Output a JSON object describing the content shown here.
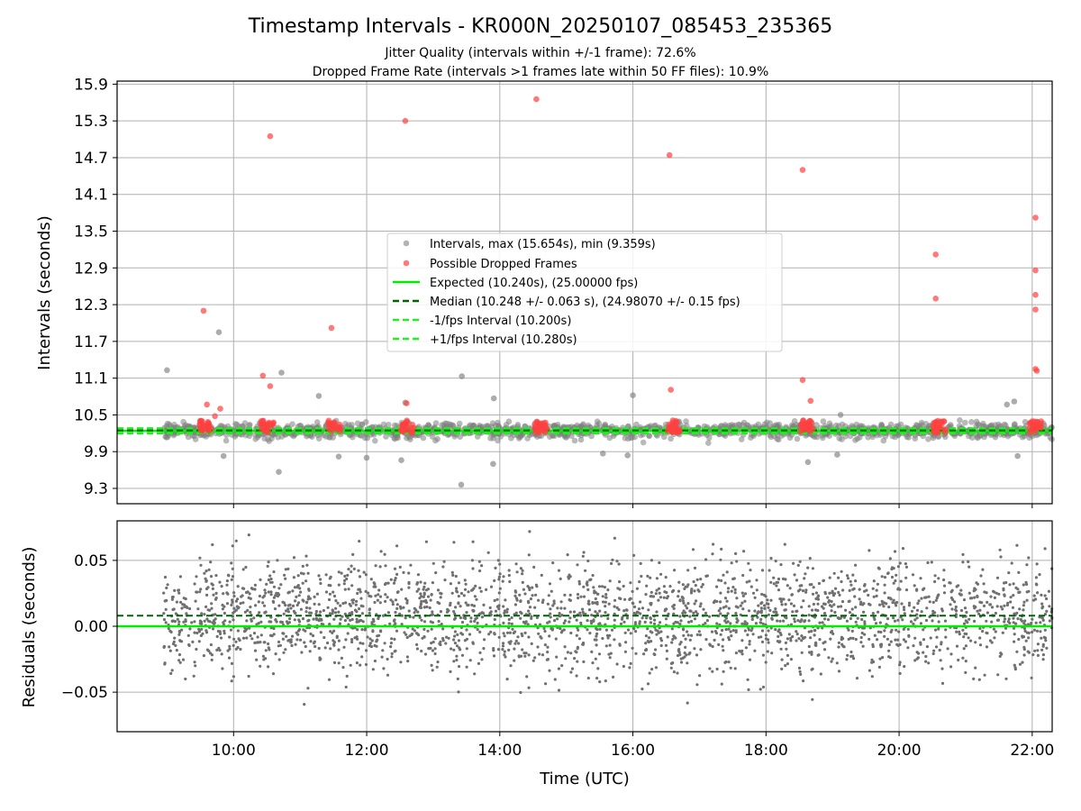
{
  "title": "Timestamp Intervals - KR000N_20250107_085453_235365",
  "subtitle_1": "Jitter Quality (intervals within +/-1 frame): 72.6%",
  "subtitle_2": "Dropped Frame Rate (intervals >1 frames late within 50 FF files): 10.9%",
  "chart_data": [
    {
      "type": "scatter",
      "panel": "top",
      "ylabel": "Intervals (seconds)",
      "x_unit": "hours UTC",
      "xlim": [
        8.25,
        22.3
      ],
      "ylim": [
        9.05,
        15.95
      ],
      "y_ticks": [
        "9.3",
        "9.9",
        "10.5",
        "11.1",
        "11.7",
        "12.3",
        "12.9",
        "13.5",
        "14.1",
        "14.7",
        "15.3",
        "15.9"
      ],
      "grid": true,
      "legend_position": "center",
      "legend": [
        "Intervals, max (15.654s), min (9.359s)",
        "Possible Dropped Frames",
        "Expected (10.240s), (25.00000 fps)",
        "Median (10.248 +/- 0.063 s), (24.98070 +/- 0.15 fps)",
        "-1/fps Interval (10.200s)",
        "+1/fps Interval (10.280s)"
      ],
      "reference_lines": {
        "expected": 10.24,
        "median": 10.248,
        "minus_one_frame": 10.2,
        "plus_one_frame": 10.28
      },
      "series": [
        {
          "name": "Intervals, max (15.654s), min (9.359s)",
          "color": "#808080",
          "points": [
            [
              9.0,
              11.23
            ],
            [
              9.78,
              11.85
            ],
            [
              10.72,
              11.19
            ],
            [
              13.43,
              11.13
            ],
            [
              13.91,
              10.77
            ],
            [
              16.0,
              10.82
            ],
            [
              19.12,
              10.5
            ],
            [
              21.73,
              10.72
            ],
            [
              21.62,
              10.67
            ],
            [
              13.42,
              9.36
            ],
            [
              13.9,
              9.7
            ],
            [
              18.63,
              9.73
            ],
            [
              10.68,
              9.57
            ],
            [
              12.52,
              9.76
            ],
            [
              11.58,
              9.82
            ],
            [
              15.55,
              9.87
            ],
            [
              12.0,
              9.8
            ],
            [
              9.85,
              9.83
            ],
            [
              15.92,
              9.84
            ],
            [
              21.78,
              9.83
            ],
            [
              19.07,
              9.85
            ],
            [
              11.28,
              10.81
            ],
            [
              12.58,
              10.7
            ]
          ]
        },
        {
          "name": "Possible Dropped Frames",
          "color": "#ff4040",
          "points": [
            [
              9.55,
              12.2
            ],
            [
              10.55,
              15.05
            ],
            [
              12.58,
              15.3
            ],
            [
              14.55,
              15.654
            ],
            [
              16.55,
              14.74
            ],
            [
              18.55,
              14.5
            ],
            [
              20.55,
              13.12
            ],
            [
              22.05,
              13.72
            ],
            [
              22.05,
              12.86
            ],
            [
              22.05,
              12.46
            ],
            [
              22.05,
              12.22
            ],
            [
              20.55,
              12.4
            ],
            [
              11.47,
              11.92
            ],
            [
              10.44,
              11.14
            ],
            [
              10.55,
              10.97
            ],
            [
              18.55,
              11.07
            ],
            [
              18.67,
              10.73
            ],
            [
              16.57,
              10.91
            ],
            [
              22.05,
              11.25
            ],
            [
              22.07,
              11.22
            ],
            [
              12.6,
              10.69
            ],
            [
              9.6,
              10.67
            ],
            [
              9.72,
              10.48
            ],
            [
              9.8,
              10.6
            ],
            [
              16.6,
              10.41
            ]
          ]
        }
      ]
    },
    {
      "type": "scatter",
      "panel": "bottom",
      "ylabel": "Residuals (seconds)",
      "xlabel": "Time (UTC)",
      "xlim": [
        8.25,
        22.3
      ],
      "ylim": [
        -0.08,
        0.08
      ],
      "x_ticks": [
        "10:00",
        "12:00",
        "14:00",
        "16:00",
        "18:00",
        "20:00",
        "22:00"
      ],
      "y_ticks": [
        "−0.05",
        "0.00",
        "0.05"
      ],
      "grid": true,
      "reference_lines": {
        "zero": 0.0,
        "median_residual": 0.008
      },
      "series": [
        {
          "name": "Residuals",
          "color": "#707070",
          "range_x": [
            8.95,
            22.3
          ],
          "spread": 0.03
        }
      ]
    }
  ],
  "colors": {
    "interval_points": "#808080",
    "dropped_points": "#ff4040",
    "expected_line": "#00ee00",
    "median_line": "#006400",
    "fps_lines": "#22ee22",
    "residual_points": "#707070",
    "grid": "#b0b0b0"
  }
}
